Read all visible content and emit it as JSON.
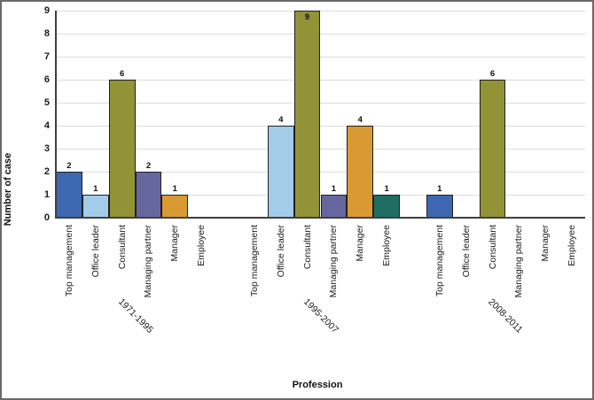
{
  "chart_data": {
    "type": "bar",
    "title": "",
    "xlabel": "Profession",
    "ylabel": "Number of case",
    "ylim": [
      0,
      9
    ],
    "yticks": [
      0,
      1,
      2,
      3,
      4,
      5,
      6,
      7,
      8,
      9
    ],
    "grid": true,
    "legend": false,
    "categories": [
      "Top management",
      "Office leader",
      "Consultant",
      "Managing partner",
      "Manager",
      "Employee"
    ],
    "category_colors": [
      "#3d68b1",
      "#a3cce9",
      "#929336",
      "#6767a0",
      "#d99a33",
      "#1e6e64"
    ],
    "groups": [
      {
        "label": "1971-1995",
        "values": [
          2,
          1,
          6,
          2,
          1,
          0
        ]
      },
      {
        "label": "1995-2007",
        "values": [
          0,
          4,
          9,
          1,
          4,
          1
        ]
      },
      {
        "label": "2008-2011",
        "values": [
          1,
          0,
          6,
          0,
          0,
          0
        ]
      }
    ],
    "bar_value_labels_shown": true,
    "colors": {
      "grid": "#dcdcdc",
      "axis": "#3f3f3f",
      "bar_border": "#1f1f1f",
      "frame_border": "#6a6a6a",
      "text": "#111111"
    }
  }
}
